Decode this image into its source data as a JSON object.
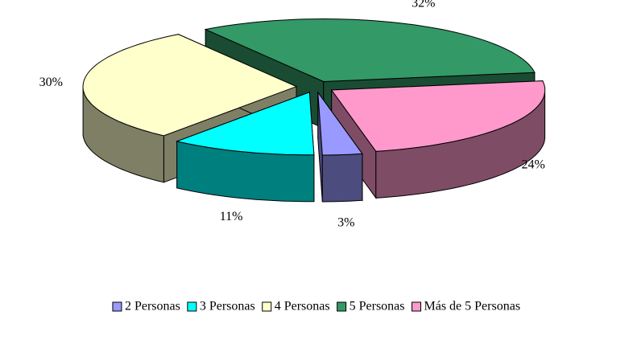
{
  "chart_data": {
    "type": "pie",
    "categories": [
      "2 Personas",
      "3 Personas",
      "4 Personas",
      "5 Personas",
      "Más de 5 Personas"
    ],
    "values": [
      3,
      11,
      30,
      32,
      24
    ],
    "value_labels": [
      "3%",
      "11%",
      "30%",
      "32%",
      "24%"
    ],
    "colors": [
      "#9999ff",
      "#00ffff",
      "#ffffcc",
      "#339966",
      "#ff99cc"
    ],
    "legend": "bottom"
  }
}
